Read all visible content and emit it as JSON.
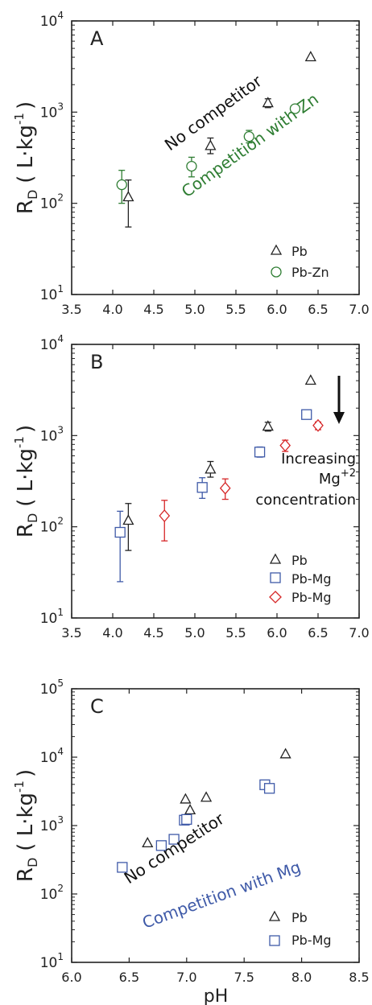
{
  "chart_data": [
    {
      "panel_label": "A",
      "type": "scatter",
      "xlabel": "",
      "ylabel_main": "R",
      "ylabel_sub": "D",
      "ylabel_unit": "( L·kg",
      "ylabel_exp": "-1",
      "ylabel_close": ")",
      "xlim": [
        3.5,
        7.0
      ],
      "ylim": [
        10,
        10000
      ],
      "yscale": "log",
      "xticks": [
        "3.5",
        "4.0",
        "4.5",
        "5.0",
        "5.5",
        "6.0",
        "6.5",
        "7.0"
      ],
      "yticks": [
        {
          "base": "10",
          "exp": "1"
        },
        {
          "base": "10",
          "exp": "2"
        },
        {
          "base": "10",
          "exp": "3"
        },
        {
          "base": "10",
          "exp": "4"
        }
      ],
      "legend_position": "bottom-right",
      "series": [
        {
          "name": "Pb",
          "marker": "triangle",
          "color": "#222222",
          "points": [
            {
              "x": 4.19,
              "y": 118,
              "lo": 55,
              "hi": 180
            },
            {
              "x": 5.19,
              "y": 430,
              "lo": 350,
              "hi": 520
            },
            {
              "x": 5.89,
              "y": 1270,
              "lo": 1120,
              "hi": 1400
            },
            {
              "x": 6.41,
              "y": 4050
            }
          ]
        },
        {
          "name": "Pb-Zn",
          "marker": "circle",
          "color": "#2e7d32",
          "points": [
            {
              "x": 4.11,
              "y": 160,
              "lo": 100,
              "hi": 230
            },
            {
              "x": 4.96,
              "y": 255,
              "lo": 195,
              "hi": 320
            },
            {
              "x": 5.66,
              "y": 540,
              "lo": 460,
              "hi": 630
            },
            {
              "x": 6.22,
              "y": 1090
            }
          ]
        }
      ],
      "annotations": [
        {
          "text": "No competitor",
          "color": "#111111"
        },
        {
          "text": "Competition with Zn",
          "color": "#2e7d32"
        }
      ]
    },
    {
      "panel_label": "B",
      "type": "scatter",
      "xlabel": "",
      "ylabel_main": "R",
      "ylabel_sub": "D",
      "ylabel_unit": "( L·kg",
      "ylabel_exp": "-1",
      "ylabel_close": ")",
      "xlim": [
        3.5,
        7.0
      ],
      "ylim": [
        10,
        10000
      ],
      "yscale": "log",
      "xticks": [
        "3.5",
        "4.0",
        "4.5",
        "5.0",
        "5.5",
        "6.0",
        "6.5",
        "7.0"
      ],
      "yticks": [
        {
          "base": "10",
          "exp": "1"
        },
        {
          "base": "10",
          "exp": "2"
        },
        {
          "base": "10",
          "exp": "3"
        },
        {
          "base": "10",
          "exp": "4"
        }
      ],
      "legend_position": "bottom-right",
      "series": [
        {
          "name": "Pb",
          "marker": "triangle",
          "color": "#222222",
          "points": [
            {
              "x": 4.19,
              "y": 118,
              "lo": 55,
              "hi": 180
            },
            {
              "x": 5.19,
              "y": 430,
              "lo": 350,
              "hi": 520
            },
            {
              "x": 5.89,
              "y": 1270,
              "lo": 1120,
              "hi": 1400
            },
            {
              "x": 6.41,
              "y": 4050
            }
          ]
        },
        {
          "name": "Pb-Mg",
          "marker": "square",
          "color": "#3f5aa8",
          "points": [
            {
              "x": 4.09,
              "y": 87,
              "lo": 25,
              "hi": 148
            },
            {
              "x": 5.09,
              "y": 270,
              "lo": 205,
              "hi": 345
            },
            {
              "x": 5.79,
              "y": 660,
              "lo": 580,
              "hi": 750
            },
            {
              "x": 6.36,
              "y": 1700,
              "lo": 1520,
              "hi": 1880
            }
          ]
        },
        {
          "name": "Pb-Mg",
          "marker": "diamond",
          "color": "#d62728",
          "points": [
            {
              "x": 4.63,
              "y": 132,
              "lo": 70,
              "hi": 195
            },
            {
              "x": 5.37,
              "y": 265,
              "lo": 200,
              "hi": 335
            },
            {
              "x": 6.1,
              "y": 780,
              "lo": 670,
              "hi": 890
            },
            {
              "x": 6.5,
              "y": 1290,
              "lo": 1160,
              "hi": 1410
            }
          ]
        }
      ],
      "annotations": [
        {
          "line1": "Increasing",
          "line2": "Mg",
          "line2_sup": "+2",
          "line3": "concentration",
          "color": "#111111"
        }
      ]
    },
    {
      "panel_label": "C",
      "type": "scatter",
      "xlabel": "pH",
      "ylabel_main": "R",
      "ylabel_sub": "D",
      "ylabel_unit": "( L·kg",
      "ylabel_exp": "-1",
      "ylabel_close": ")",
      "xlim": [
        6.0,
        8.5
      ],
      "ylim": [
        10,
        100000
      ],
      "yscale": "log",
      "xticks": [
        "6.0",
        "6.5",
        "7.0",
        "7.5",
        "8.0",
        "8.5"
      ],
      "yticks": [
        {
          "base": "10",
          "exp": "1"
        },
        {
          "base": "10",
          "exp": "2"
        },
        {
          "base": "10",
          "exp": "3"
        },
        {
          "base": "10",
          "exp": "4"
        },
        {
          "base": "10",
          "exp": "5"
        }
      ],
      "legend_position": "bottom-right",
      "series": [
        {
          "name": "Pb",
          "marker": "triangle",
          "color": "#222222",
          "points": [
            {
              "x": 6.66,
              "y": 560
            },
            {
              "x": 6.99,
              "y": 2450
            },
            {
              "x": 7.03,
              "y": 1700
            },
            {
              "x": 7.17,
              "y": 2600
            },
            {
              "x": 7.86,
              "y": 11200
            }
          ]
        },
        {
          "name": "Pb-Mg",
          "marker": "square",
          "color": "#3f5aa8",
          "points": [
            {
              "x": 6.44,
              "y": 245
            },
            {
              "x": 6.78,
              "y": 510
            },
            {
              "x": 6.89,
              "y": 630
            },
            {
              "x": 6.98,
              "y": 1200
            },
            {
              "x": 7.0,
              "y": 1230
            },
            {
              "x": 7.68,
              "y": 3950
            },
            {
              "x": 7.72,
              "y": 3500
            }
          ]
        }
      ],
      "annotations": [
        {
          "text": "No competitor",
          "color": "#111111"
        },
        {
          "text": "Competition with Mg",
          "color": "#3f5aa8"
        }
      ]
    }
  ]
}
